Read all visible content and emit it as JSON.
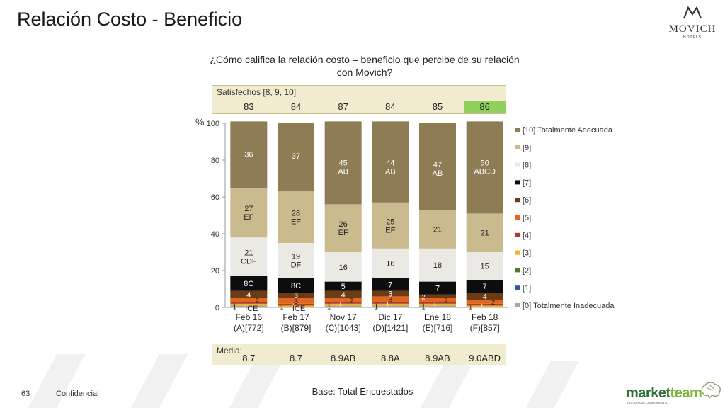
{
  "page": {
    "title": "Relación Costo - Beneficio",
    "question": "¿Cómo califica la relación costo – beneficio que percibe de su relación con Movich?",
    "brand": "MOVICH",
    "brand_sub": "HOTELS",
    "satisfied_label": "Satisfechos [8, 9, 10]",
    "satisfied_values": [
      "83",
      "84",
      "87",
      "84",
      "85",
      "86"
    ],
    "satisfied_highlight_color": "#8fcf5c",
    "media_label": "Media:",
    "media_values": [
      "8.7",
      "8.7",
      "8.9AB",
      "8.8A",
      "8.9AB",
      "9.0ABD"
    ],
    "pct_symbol": "%",
    "base_note": "Base: Total Encuestados",
    "page_number": "63",
    "confidential": "Confidencial",
    "footer_brand_a": "market",
    "footer_brand_b": "team",
    "footer_tagline": "CULTURA DE CONOCIMIENTO"
  },
  "chart_data": {
    "type": "bar",
    "stacked": true,
    "categories": [
      "Feb 16\n(A)[772]",
      "Feb 17\n(B)[879]",
      "Nov 17\n(C)[1043]",
      "Dic 17\n(D)[1421]",
      "Ene 18\n(E)[716]",
      "Feb 18\n(F)[857]"
    ],
    "ylim": [
      0,
      100
    ],
    "yticks": [
      0,
      20,
      40,
      60,
      80,
      100
    ],
    "legend_position": "right",
    "series": [
      {
        "name": "[0] Totalmente Inadecuada",
        "color": "#a6a6a6",
        "values": [
          1,
          0,
          1,
          1,
          1,
          0
        ],
        "labels": [
          "1",
          "",
          "1",
          "1",
          "1",
          ""
        ]
      },
      {
        "name": "[1]",
        "color": "#2e5aa8",
        "values": [
          0,
          0,
          0,
          0,
          0,
          0
        ],
        "labels": [
          "",
          "",
          "",
          "",
          "",
          ""
        ]
      },
      {
        "name": "[2]",
        "color": "#4e7a2c",
        "values": [
          0,
          0,
          0,
          0,
          0,
          0
        ],
        "labels": [
          "",
          "",
          "",
          "",
          "",
          ""
        ]
      },
      {
        "name": "[3]",
        "color": "#f5b21a",
        "values": [
          1,
          1,
          1,
          1,
          1,
          1
        ],
        "labels": [
          "1",
          "1",
          "1",
          "1",
          "1",
          "1"
        ]
      },
      {
        "name": "[4]",
        "color": "#a8402a",
        "values": [
          1,
          1,
          1,
          1,
          1,
          1
        ],
        "labels": [
          "1",
          "1",
          "1",
          "1",
          "1",
          "1"
        ]
      },
      {
        "name": "[5]",
        "color": "#e2661f",
        "values": [
          2,
          3,
          2,
          3,
          2,
          2
        ],
        "labels": [
          "2",
          "3",
          "2",
          "3",
          "2",
          "2"
        ]
      },
      {
        "name": "[6]",
        "color": "#6b3b15",
        "values": [
          4,
          3,
          4,
          3,
          2,
          4
        ],
        "labels": [
          "4",
          "3",
          "4",
          "3",
          "2",
          "4"
        ]
      },
      {
        "name": "[7]",
        "color": "#0d0d0d",
        "values": [
          8,
          8,
          5,
          7,
          7,
          7
        ],
        "labels": [
          "8C",
          "8C",
          "5",
          "7",
          "7",
          "7"
        ]
      },
      {
        "name": "[8]",
        "color": "#ebe9e3",
        "values": [
          21,
          19,
          16,
          16,
          18,
          15
        ],
        "labels": [
          "21\nCDF",
          "19\nDF",
          "16",
          "16",
          "18",
          "15"
        ]
      },
      {
        "name": "[9]",
        "color": "#c9bb8e",
        "values": [
          27,
          28,
          26,
          25,
          21,
          21
        ],
        "labels": [
          "27\nEF",
          "28\nEF",
          "26\nEF",
          "25\nEF",
          "21",
          "21"
        ]
      },
      {
        "name": "[10] Totalmente Adecuada",
        "color": "#8e7c55",
        "values": [
          36,
          37,
          45,
          44,
          47,
          50
        ],
        "labels": [
          "36",
          "37",
          "45\nAB",
          "44\nAB",
          "47\nAB",
          "50\nABCD"
        ]
      }
    ],
    "annotations": [
      {
        "category": 0,
        "text": "ICE"
      },
      {
        "category": 1,
        "text": "ICE"
      }
    ]
  }
}
